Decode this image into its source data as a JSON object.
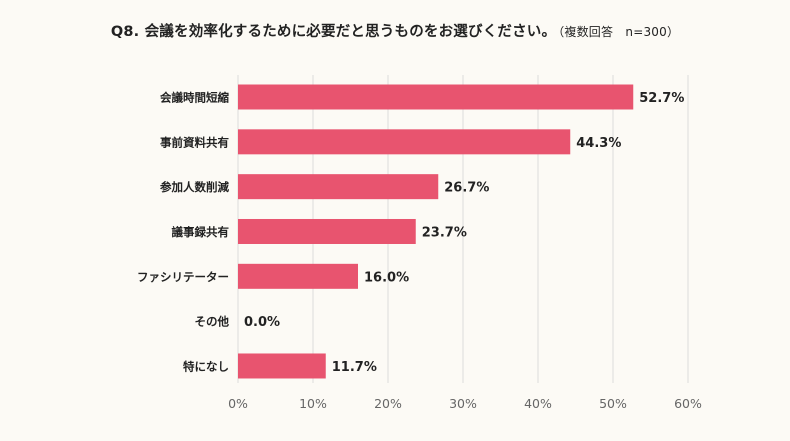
{
  "title": "Q8. 会議を効率化するために必要だと思うものをお選びください。",
  "subtitle": "（複数回答　n=300）",
  "colors": {
    "bar": "#E8546F",
    "grid": "#DCDCDC",
    "axis_text": "#666666",
    "label_text": "#222222",
    "background": "#FCFAF5"
  },
  "chart_data": {
    "type": "bar",
    "orientation": "horizontal",
    "categories": [
      "会議時間短縮",
      "事前資料共有",
      "参加人数削減",
      "議事録共有",
      "ファシリテーター",
      "その他",
      "特になし"
    ],
    "values": [
      52.7,
      44.3,
      26.7,
      23.7,
      16.0,
      0.0,
      11.7
    ],
    "value_labels": [
      "52.7%",
      "44.3%",
      "26.7%",
      "23.7%",
      "16.0%",
      "0.0%",
      "11.7%"
    ],
    "xlim": [
      0,
      60
    ],
    "ticks": [
      0,
      10,
      20,
      30,
      40,
      50,
      60
    ],
    "tick_labels": [
      "0%",
      "10%",
      "20%",
      "30%",
      "40%",
      "50%",
      "60%"
    ],
    "grid": true
  }
}
